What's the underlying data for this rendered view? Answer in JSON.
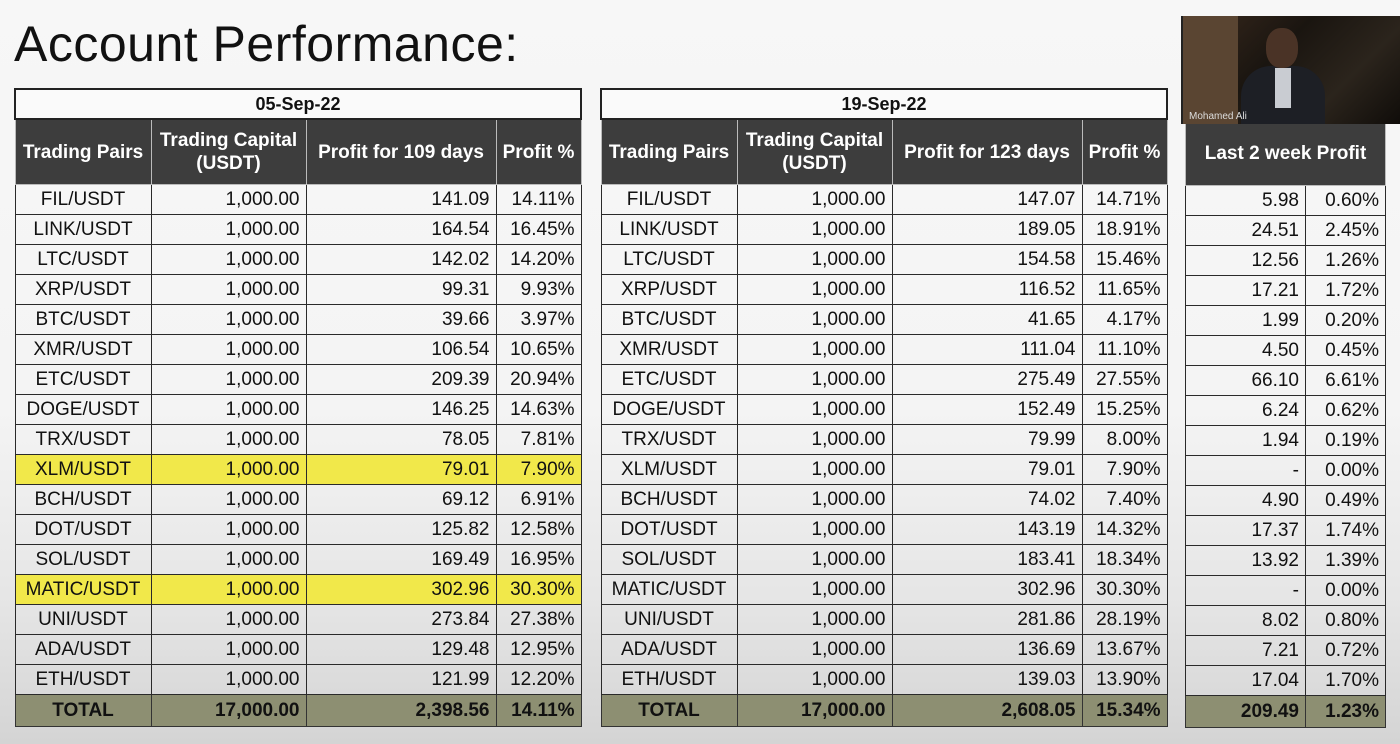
{
  "title": "Account Performance:",
  "webcam": {
    "name": "Mohamed Ali"
  },
  "table1": {
    "date": "05-Sep-22",
    "headers": {
      "pairs": "Trading Pairs",
      "capital": "Trading Capital (USDT)",
      "profit": "Profit for 109 days",
      "pct": "Profit %"
    },
    "rows": [
      {
        "pair": "FIL/USDT",
        "capital": "1,000.00",
        "profit": "141.09",
        "pct": "14.11%"
      },
      {
        "pair": "LINK/USDT",
        "capital": "1,000.00",
        "profit": "164.54",
        "pct": "16.45%"
      },
      {
        "pair": "LTC/USDT",
        "capital": "1,000.00",
        "profit": "142.02",
        "pct": "14.20%"
      },
      {
        "pair": "XRP/USDT",
        "capital": "1,000.00",
        "profit": "99.31",
        "pct": "9.93%"
      },
      {
        "pair": "BTC/USDT",
        "capital": "1,000.00",
        "profit": "39.66",
        "pct": "3.97%"
      },
      {
        "pair": "XMR/USDT",
        "capital": "1,000.00",
        "profit": "106.54",
        "pct": "10.65%"
      },
      {
        "pair": "ETC/USDT",
        "capital": "1,000.00",
        "profit": "209.39",
        "pct": "20.94%"
      },
      {
        "pair": "DOGE/USDT",
        "capital": "1,000.00",
        "profit": "146.25",
        "pct": "14.63%"
      },
      {
        "pair": "TRX/USDT",
        "capital": "1,000.00",
        "profit": "78.05",
        "pct": "7.81%"
      },
      {
        "pair": "XLM/USDT",
        "capital": "1,000.00",
        "profit": "79.01",
        "pct": "7.90%"
      },
      {
        "pair": "BCH/USDT",
        "capital": "1,000.00",
        "profit": "69.12",
        "pct": "6.91%"
      },
      {
        "pair": "DOT/USDT",
        "capital": "1,000.00",
        "profit": "125.82",
        "pct": "12.58%"
      },
      {
        "pair": "SOL/USDT",
        "capital": "1,000.00",
        "profit": "169.49",
        "pct": "16.95%"
      },
      {
        "pair": "MATIC/USDT",
        "capital": "1,000.00",
        "profit": "302.96",
        "pct": "30.30%"
      },
      {
        "pair": "UNI/USDT",
        "capital": "1,000.00",
        "profit": "273.84",
        "pct": "27.38%"
      },
      {
        "pair": "ADA/USDT",
        "capital": "1,000.00",
        "profit": "129.48",
        "pct": "12.95%"
      },
      {
        "pair": "ETH/USDT",
        "capital": "1,000.00",
        "profit": "121.99",
        "pct": "12.20%"
      }
    ],
    "highlighted_rows": [
      "XLM/USDT",
      "MATIC/USDT"
    ],
    "total": {
      "pair": "TOTAL",
      "capital": "17,000.00",
      "profit": "2,398.56",
      "pct": "14.11%"
    }
  },
  "table2": {
    "date": "19-Sep-22",
    "headers": {
      "pairs": "Trading Pairs",
      "capital": "Trading Capital (USDT)",
      "profit": "Profit for 123 days",
      "pct": "Profit %"
    },
    "rows": [
      {
        "pair": "FIL/USDT",
        "capital": "1,000.00",
        "profit": "147.07",
        "pct": "14.71%"
      },
      {
        "pair": "LINK/USDT",
        "capital": "1,000.00",
        "profit": "189.05",
        "pct": "18.91%"
      },
      {
        "pair": "LTC/USDT",
        "capital": "1,000.00",
        "profit": "154.58",
        "pct": "15.46%"
      },
      {
        "pair": "XRP/USDT",
        "capital": "1,000.00",
        "profit": "116.52",
        "pct": "11.65%"
      },
      {
        "pair": "BTC/USDT",
        "capital": "1,000.00",
        "profit": "41.65",
        "pct": "4.17%"
      },
      {
        "pair": "XMR/USDT",
        "capital": "1,000.00",
        "profit": "111.04",
        "pct": "11.10%"
      },
      {
        "pair": "ETC/USDT",
        "capital": "1,000.00",
        "profit": "275.49",
        "pct": "27.55%"
      },
      {
        "pair": "DOGE/USDT",
        "capital": "1,000.00",
        "profit": "152.49",
        "pct": "15.25%"
      },
      {
        "pair": "TRX/USDT",
        "capital": "1,000.00",
        "profit": "79.99",
        "pct": "8.00%"
      },
      {
        "pair": "XLM/USDT",
        "capital": "1,000.00",
        "profit": "79.01",
        "pct": "7.90%"
      },
      {
        "pair": "BCH/USDT",
        "capital": "1,000.00",
        "profit": "74.02",
        "pct": "7.40%"
      },
      {
        "pair": "DOT/USDT",
        "capital": "1,000.00",
        "profit": "143.19",
        "pct": "14.32%"
      },
      {
        "pair": "SOL/USDT",
        "capital": "1,000.00",
        "profit": "183.41",
        "pct": "18.34%"
      },
      {
        "pair": "MATIC/USDT",
        "capital": "1,000.00",
        "profit": "302.96",
        "pct": "30.30%"
      },
      {
        "pair": "UNI/USDT",
        "capital": "1,000.00",
        "profit": "281.86",
        "pct": "28.19%"
      },
      {
        "pair": "ADA/USDT",
        "capital": "1,000.00",
        "profit": "136.69",
        "pct": "13.67%"
      },
      {
        "pair": "ETH/USDT",
        "capital": "1,000.00",
        "profit": "139.03",
        "pct": "13.90%"
      }
    ],
    "total": {
      "pair": "TOTAL",
      "capital": "17,000.00",
      "profit": "2,608.05",
      "pct": "15.34%"
    }
  },
  "table3": {
    "header": "Last 2 week Profit",
    "rows": [
      {
        "profit": "5.98",
        "pct": "0.60%"
      },
      {
        "profit": "24.51",
        "pct": "2.45%"
      },
      {
        "profit": "12.56",
        "pct": "1.26%"
      },
      {
        "profit": "17.21",
        "pct": "1.72%"
      },
      {
        "profit": "1.99",
        "pct": "0.20%"
      },
      {
        "profit": "4.50",
        "pct": "0.45%"
      },
      {
        "profit": "66.10",
        "pct": "6.61%"
      },
      {
        "profit": "6.24",
        "pct": "0.62%"
      },
      {
        "profit": "1.94",
        "pct": "0.19%"
      },
      {
        "profit": "-",
        "pct": "0.00%"
      },
      {
        "profit": "4.90",
        "pct": "0.49%"
      },
      {
        "profit": "17.37",
        "pct": "1.74%"
      },
      {
        "profit": "13.92",
        "pct": "1.39%"
      },
      {
        "profit": "-",
        "pct": "0.00%"
      },
      {
        "profit": "8.02",
        "pct": "0.80%"
      },
      {
        "profit": "7.21",
        "pct": "0.72%"
      },
      {
        "profit": "17.04",
        "pct": "1.70%"
      }
    ],
    "total": {
      "profit": "209.49",
      "pct": "1.23%"
    }
  },
  "colors": {
    "header_bg": "#3d3d3d",
    "highlight": "#f1e84a",
    "total_bg": "#8d8f72"
  }
}
